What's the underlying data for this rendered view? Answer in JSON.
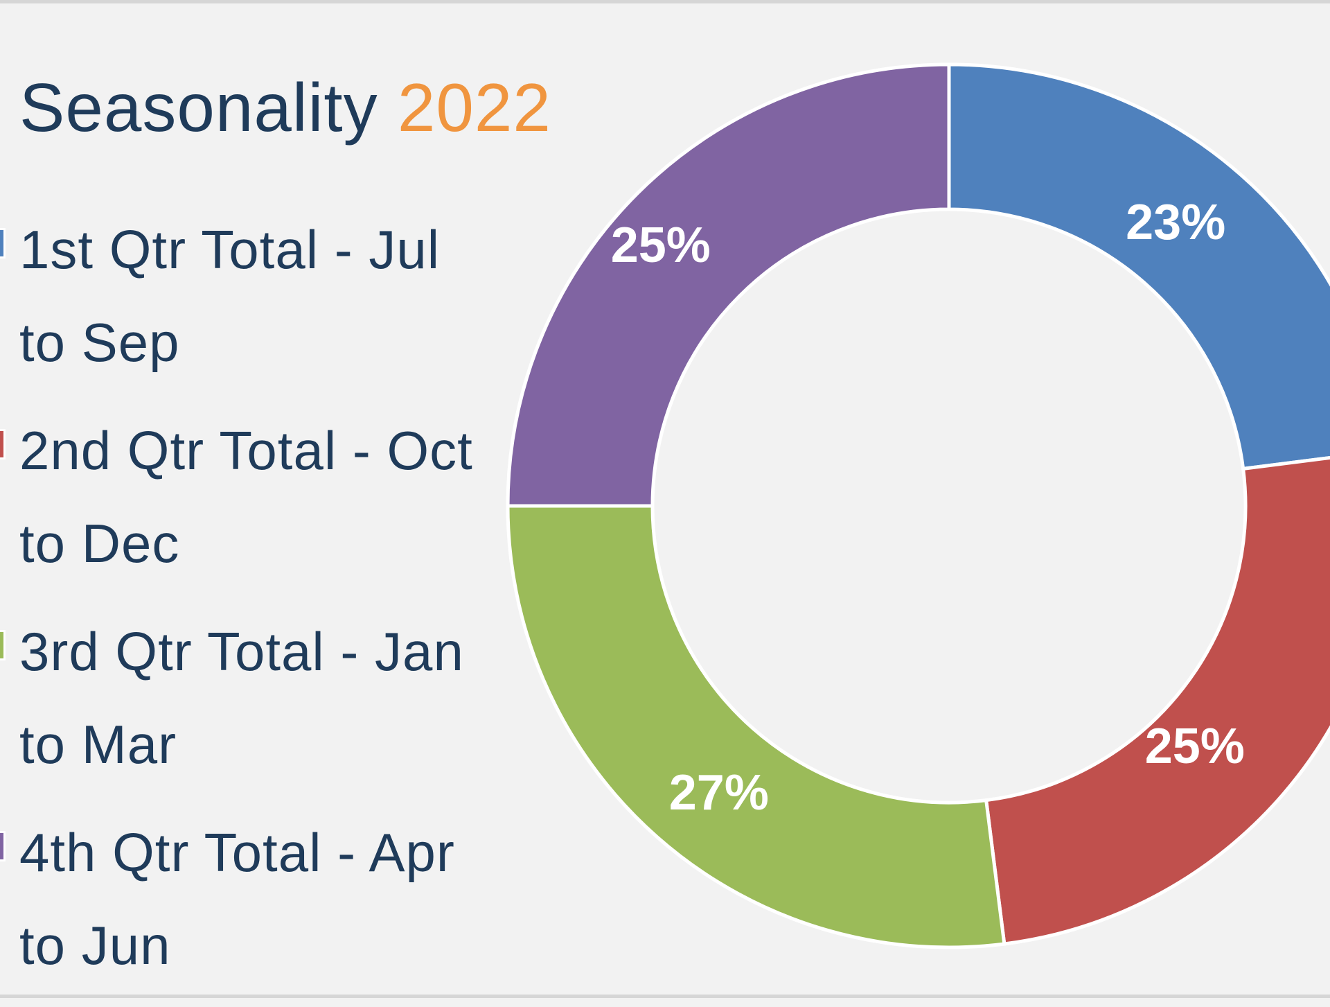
{
  "title": {
    "main": "Seasonality",
    "year": "2022"
  },
  "colors": {
    "title": "#1f3b5a",
    "year": "#f0953f",
    "background": "#f2f2f2"
  },
  "chart_data": {
    "type": "pie",
    "donut": true,
    "title": "Seasonality 2022",
    "legend_position": "left",
    "categories": [
      "1st Qtr Total - Jul to Sep",
      "2nd Qtr Total - Oct to Dec",
      "3rd Qtr Total - Jan to Mar",
      "4th Qtr Total - Apr to Jun"
    ],
    "values": [
      23,
      25,
      27,
      25
    ],
    "labels": [
      "23%",
      "25%",
      "27%",
      "25%"
    ],
    "colors": [
      "#4f81bd",
      "#c0504d",
      "#9bbb59",
      "#8064a2"
    ]
  }
}
